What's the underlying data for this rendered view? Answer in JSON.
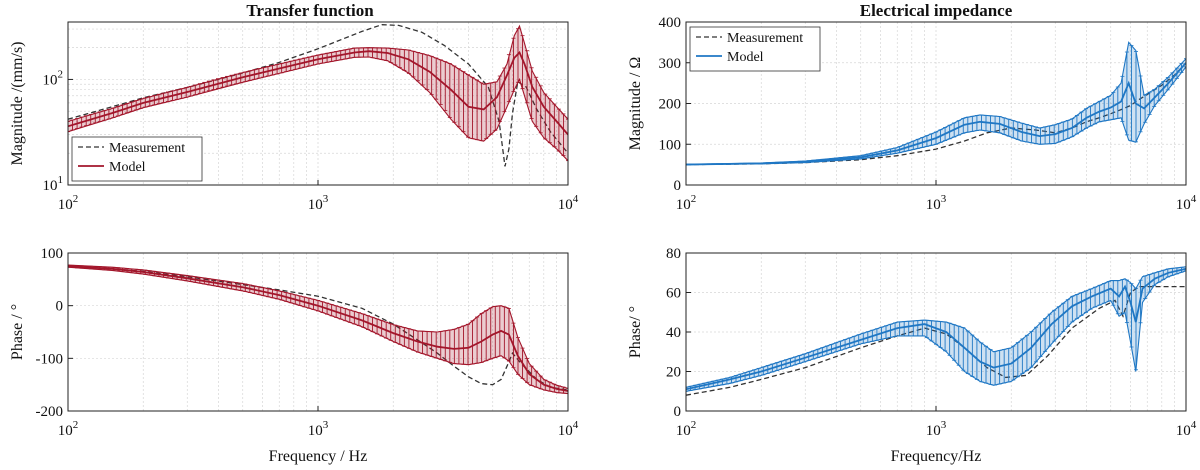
{
  "figure": {
    "left_title": "Transfer function",
    "right_title": "Electrical impedance"
  },
  "colors": {
    "red": "#a3162b",
    "blue": "#1f77c4",
    "measurement": "#333333"
  },
  "chart_data": [
    {
      "id": "tf_mag",
      "type": "line",
      "title": "Transfer function",
      "ylabel": "Magnitude /(mm/s)",
      "xlabel": "",
      "xscale": "log",
      "yscale": "log",
      "xlim": [
        100,
        10000
      ],
      "ylim": [
        10,
        350
      ],
      "xticks": [
        "10^2",
        "10^3",
        "10^4"
      ],
      "yticks": [
        "10^1",
        "10^2"
      ],
      "legend": {
        "position": "bottom-left",
        "entries": [
          "Measurement",
          "Model"
        ]
      },
      "series": [
        {
          "name": "Measurement",
          "style": "dashed",
          "x": [
            100,
            150,
            200,
            300,
            500,
            700,
            1000,
            1500,
            1800,
            2100,
            2600,
            3200,
            4000,
            4800,
            5300,
            5600,
            5800,
            6000,
            6300,
            6800,
            7500,
            8500,
            10000
          ],
          "y": [
            42,
            55,
            67,
            84,
            115,
            145,
            195,
            285,
            330,
            325,
            280,
            210,
            140,
            85,
            40,
            15,
            22,
            48,
            95,
            85,
            52,
            32,
            20
          ]
        },
        {
          "name": "Model",
          "style": "solid",
          "x": [
            100,
            150,
            200,
            300,
            500,
            700,
            1000,
            1400,
            1600,
            1900,
            2300,
            2800,
            3400,
            4000,
            4600,
            5200,
            5700,
            6100,
            6400,
            6700,
            7200,
            8000,
            9000,
            10000
          ],
          "y": [
            36,
            48,
            60,
            76,
            105,
            127,
            155,
            180,
            185,
            178,
            155,
            118,
            80,
            55,
            52,
            68,
            110,
            160,
            180,
            140,
            85,
            55,
            40,
            30
          ],
          "lower": [
            32,
            43,
            54,
            68,
            94,
            114,
            140,
            162,
            163,
            150,
            115,
            75,
            42,
            28,
            26,
            34,
            55,
            80,
            100,
            70,
            40,
            28,
            22,
            17
          ],
          "upper": [
            40,
            53,
            66,
            84,
            116,
            140,
            170,
            198,
            200,
            198,
            190,
            168,
            140,
            110,
            90,
            95,
            140,
            260,
            320,
            220,
            120,
            75,
            55,
            42
          ]
        }
      ]
    },
    {
      "id": "tf_phase",
      "type": "line",
      "title": "",
      "ylabel": "Phase / °",
      "xlabel": "Frequency / Hz",
      "xscale": "log",
      "yscale": "linear",
      "xlim": [
        100,
        10000
      ],
      "ylim": [
        -200,
        100
      ],
      "xticks": [
        "10^2",
        "10^3",
        "10^4"
      ],
      "yticks": [
        "-200",
        "-100",
        "0",
        "100"
      ],
      "series": [
        {
          "name": "Measurement",
          "style": "dashed",
          "x": [
            100,
            150,
            200,
            300,
            500,
            700,
            1000,
            1500,
            2000,
            2500,
            3000,
            3500,
            4000,
            4500,
            5000,
            5400,
            5700,
            6000,
            6500,
            7500,
            8500,
            10000
          ],
          "y": [
            75,
            70,
            65,
            55,
            40,
            30,
            18,
            -5,
            -35,
            -65,
            -90,
            -115,
            -135,
            -148,
            -150,
            -140,
            -115,
            -90,
            -110,
            -140,
            -155,
            -160
          ],
          "lower": [],
          "upper": []
        },
        {
          "name": "Model",
          "style": "solid",
          "x": [
            100,
            150,
            200,
            300,
            500,
            700,
            1000,
            1500,
            2000,
            2500,
            3000,
            3500,
            4000,
            4500,
            5000,
            5400,
            5800,
            6300,
            7000,
            8000,
            9000,
            10000
          ],
          "y": [
            75,
            70,
            64,
            52,
            35,
            20,
            0,
            -28,
            -52,
            -68,
            -78,
            -82,
            -80,
            -68,
            -55,
            -48,
            -55,
            -95,
            -130,
            -150,
            -158,
            -162
          ],
          "lower": [
            73,
            67,
            60,
            47,
            28,
            12,
            -10,
            -40,
            -68,
            -88,
            -100,
            -110,
            -112,
            -108,
            -100,
            -95,
            -105,
            -130,
            -150,
            -160,
            -165,
            -167
          ],
          "upper": [
            77,
            73,
            68,
            57,
            42,
            28,
            10,
            -15,
            -36,
            -48,
            -50,
            -45,
            -35,
            -15,
            -2,
            0,
            -5,
            -60,
            -110,
            -140,
            -151,
            -157
          ]
        }
      ]
    },
    {
      "id": "ei_mag",
      "type": "line",
      "title": "Electrical impedance",
      "ylabel": "Magnitude / Ω",
      "xlabel": "",
      "xscale": "log",
      "yscale": "linear",
      "xlim": [
        100,
        10000
      ],
      "ylim": [
        0,
        400
      ],
      "xticks": [
        "10^2",
        "10^3",
        "10^4"
      ],
      "yticks": [
        "0",
        "100",
        "200",
        "300",
        "400"
      ],
      "legend": {
        "position": "top-left",
        "entries": [
          "Measurement",
          "Model"
        ]
      },
      "series": [
        {
          "name": "Measurement",
          "style": "dashed",
          "x": [
            100,
            200,
            300,
            500,
            700,
            1000,
            1300,
            1600,
            2000,
            2500,
            3000,
            3500,
            4000,
            4500,
            5000,
            5500,
            6000,
            6500,
            7000,
            8000,
            9000,
            10000
          ],
          "y": [
            50,
            52,
            55,
            62,
            72,
            88,
            108,
            128,
            140,
            135,
            128,
            140,
            155,
            165,
            175,
            185,
            195,
            210,
            222,
            245,
            270,
            300
          ],
          "lower": [],
          "upper": []
        },
        {
          "name": "Model",
          "style": "solid",
          "x": [
            100,
            200,
            300,
            500,
            700,
            1000,
            1300,
            1500,
            1800,
            2200,
            2600,
            3000,
            3500,
            4000,
            4500,
            5000,
            5500,
            5900,
            6300,
            6800,
            7500,
            8500,
            10000
          ],
          "y": [
            50,
            53,
            57,
            68,
            85,
            115,
            148,
            155,
            150,
            130,
            120,
            125,
            140,
            165,
            180,
            190,
            205,
            250,
            200,
            188,
            215,
            250,
            300
          ],
          "lower": [
            50,
            52,
            55,
            64,
            78,
            100,
            128,
            135,
            128,
            108,
            100,
            102,
            118,
            140,
            155,
            160,
            165,
            110,
            105,
            150,
            195,
            235,
            290
          ],
          "upper": [
            51,
            54,
            59,
            72,
            92,
            130,
            165,
            172,
            168,
            152,
            140,
            148,
            162,
            188,
            205,
            220,
            250,
            350,
            330,
            220,
            235,
            265,
            310
          ]
        }
      ]
    },
    {
      "id": "ei_phase",
      "type": "line",
      "title": "",
      "ylabel": "Phase/ °",
      "xlabel": "Frequency/Hz",
      "xscale": "log",
      "yscale": "linear",
      "xlim": [
        100,
        10000
      ],
      "ylim": [
        0,
        80
      ],
      "xticks": [
        "10^2",
        "10^3",
        "10^4"
      ],
      "yticks": [
        "0",
        "20",
        "40",
        "60",
        "80"
      ],
      "series": [
        {
          "name": "Measurement",
          "style": "dashed",
          "x": [
            100,
            150,
            200,
            300,
            500,
            700,
            900,
            1100,
            1300,
            1600,
            1900,
            2300,
            2800,
            3500,
            4500,
            5200,
            5600,
            6000,
            6500,
            7500,
            8500,
            10000
          ],
          "y": [
            8,
            12,
            16,
            22,
            32,
            38,
            42,
            39,
            32,
            22,
            17,
            18,
            28,
            42,
            52,
            56,
            48,
            60,
            63,
            63,
            63,
            63
          ],
          "lower": [],
          "upper": []
        },
        {
          "name": "Model",
          "style": "solid",
          "x": [
            100,
            150,
            200,
            300,
            500,
            700,
            900,
            1100,
            1300,
            1500,
            1700,
            2000,
            2400,
            2900,
            3500,
            4200,
            5000,
            5400,
            5700,
            6000,
            6300,
            6700,
            7500,
            8500,
            10000
          ],
          "y": [
            11,
            16,
            20,
            27,
            36,
            42,
            44,
            40,
            32,
            25,
            22,
            24,
            32,
            44,
            53,
            58,
            62,
            58,
            63,
            55,
            45,
            62,
            67,
            70,
            72
          ],
          "lower": [
            10,
            14,
            18,
            25,
            34,
            38,
            38,
            30,
            20,
            15,
            13,
            15,
            22,
            34,
            45,
            52,
            56,
            48,
            50,
            35,
            20,
            55,
            64,
            68,
            71
          ],
          "upper": [
            12,
            17,
            22,
            29,
            39,
            45,
            46,
            45,
            42,
            35,
            30,
            32,
            40,
            50,
            58,
            62,
            66,
            66,
            67,
            65,
            62,
            68,
            70,
            72,
            73
          ]
        }
      ]
    }
  ]
}
